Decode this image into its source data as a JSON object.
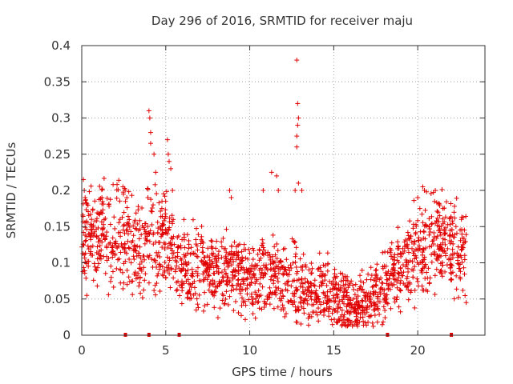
{
  "chart_data": {
    "type": "scatter",
    "title": "Day 296 of 2016, SRMTID for receiver maju",
    "xlabel": "GPS time / hours",
    "ylabel": "SRMTID / TECUs",
    "xlim": [
      0,
      24
    ],
    "ylim": [
      0,
      0.4
    ],
    "x_ticks": [
      0,
      5,
      10,
      15,
      20
    ],
    "x_tick_labels": [
      "0",
      "5",
      "10",
      "15",
      "20"
    ],
    "y_ticks": [
      0,
      0.05,
      0.1,
      0.15,
      0.2,
      0.25,
      0.3,
      0.35,
      0.4
    ],
    "y_tick_labels": [
      "0",
      "0.05",
      "0.1",
      "0.15",
      "0.2",
      "0.25",
      "0.3",
      "0.35",
      "0.4"
    ],
    "grid": true,
    "marker": "+",
    "series_color": "#e00000",
    "gap_markers_x": [
      2.6,
      4.0,
      5.8,
      18.2,
      22.0
    ],
    "trend": [
      [
        0.0,
        0.135
      ],
      [
        0.5,
        0.13
      ],
      [
        1.0,
        0.135
      ],
      [
        1.5,
        0.13
      ],
      [
        2.0,
        0.14
      ],
      [
        2.5,
        0.145
      ],
      [
        3.0,
        0.12
      ],
      [
        3.5,
        0.115
      ],
      [
        4.0,
        0.13
      ],
      [
        4.5,
        0.125
      ],
      [
        5.0,
        0.135
      ],
      [
        5.5,
        0.115
      ],
      [
        6.0,
        0.1
      ],
      [
        6.5,
        0.095
      ],
      [
        7.0,
        0.095
      ],
      [
        7.5,
        0.09
      ],
      [
        8.0,
        0.09
      ],
      [
        8.5,
        0.085
      ],
      [
        9.0,
        0.09
      ],
      [
        9.5,
        0.085
      ],
      [
        10.0,
        0.08
      ],
      [
        10.5,
        0.08
      ],
      [
        11.0,
        0.085
      ],
      [
        11.5,
        0.08
      ],
      [
        12.0,
        0.075
      ],
      [
        12.5,
        0.08
      ],
      [
        13.0,
        0.07
      ],
      [
        13.5,
        0.065
      ],
      [
        14.0,
        0.06
      ],
      [
        14.5,
        0.06
      ],
      [
        15.0,
        0.055
      ],
      [
        15.5,
        0.045
      ],
      [
        16.0,
        0.04
      ],
      [
        16.5,
        0.04
      ],
      [
        17.0,
        0.045
      ],
      [
        17.5,
        0.055
      ],
      [
        18.0,
        0.07
      ],
      [
        18.5,
        0.085
      ],
      [
        19.0,
        0.095
      ],
      [
        19.5,
        0.1
      ],
      [
        20.0,
        0.115
      ],
      [
        20.5,
        0.13
      ],
      [
        21.0,
        0.135
      ],
      [
        21.5,
        0.13
      ],
      [
        22.0,
        0.12
      ],
      [
        22.5,
        0.115
      ],
      [
        22.9,
        0.11
      ]
    ],
    "spikes": [
      [
        0.1,
        0.215
      ],
      [
        0.15,
        0.2
      ],
      [
        0.2,
        0.19
      ],
      [
        1.2,
        0.19
      ],
      [
        2.45,
        0.205
      ],
      [
        4.0,
        0.31
      ],
      [
        4.05,
        0.3
      ],
      [
        4.1,
        0.28
      ],
      [
        4.1,
        0.265
      ],
      [
        4.3,
        0.25
      ],
      [
        4.4,
        0.225
      ],
      [
        5.1,
        0.27
      ],
      [
        5.15,
        0.25
      ],
      [
        5.2,
        0.24
      ],
      [
        5.3,
        0.23
      ],
      [
        5.4,
        0.2
      ],
      [
        8.8,
        0.2
      ],
      [
        8.9,
        0.19
      ],
      [
        10.8,
        0.2
      ],
      [
        11.3,
        0.225
      ],
      [
        11.6,
        0.22
      ],
      [
        11.7,
        0.2
      ],
      [
        12.8,
        0.38
      ],
      [
        12.85,
        0.32
      ],
      [
        12.9,
        0.3
      ],
      [
        12.85,
        0.29
      ],
      [
        12.8,
        0.275
      ],
      [
        12.8,
        0.26
      ],
      [
        12.9,
        0.21
      ],
      [
        12.7,
        0.2
      ],
      [
        13.1,
        0.2
      ],
      [
        20.3,
        0.205
      ],
      [
        20.4,
        0.2
      ],
      [
        20.0,
        0.19
      ],
      [
        21.5,
        0.175
      ],
      [
        22.6,
        0.16
      ],
      [
        0.3,
        0.055
      ],
      [
        2.7,
        0.07
      ],
      [
        15.5,
        0.02
      ],
      [
        16.0,
        0.018
      ]
    ]
  }
}
